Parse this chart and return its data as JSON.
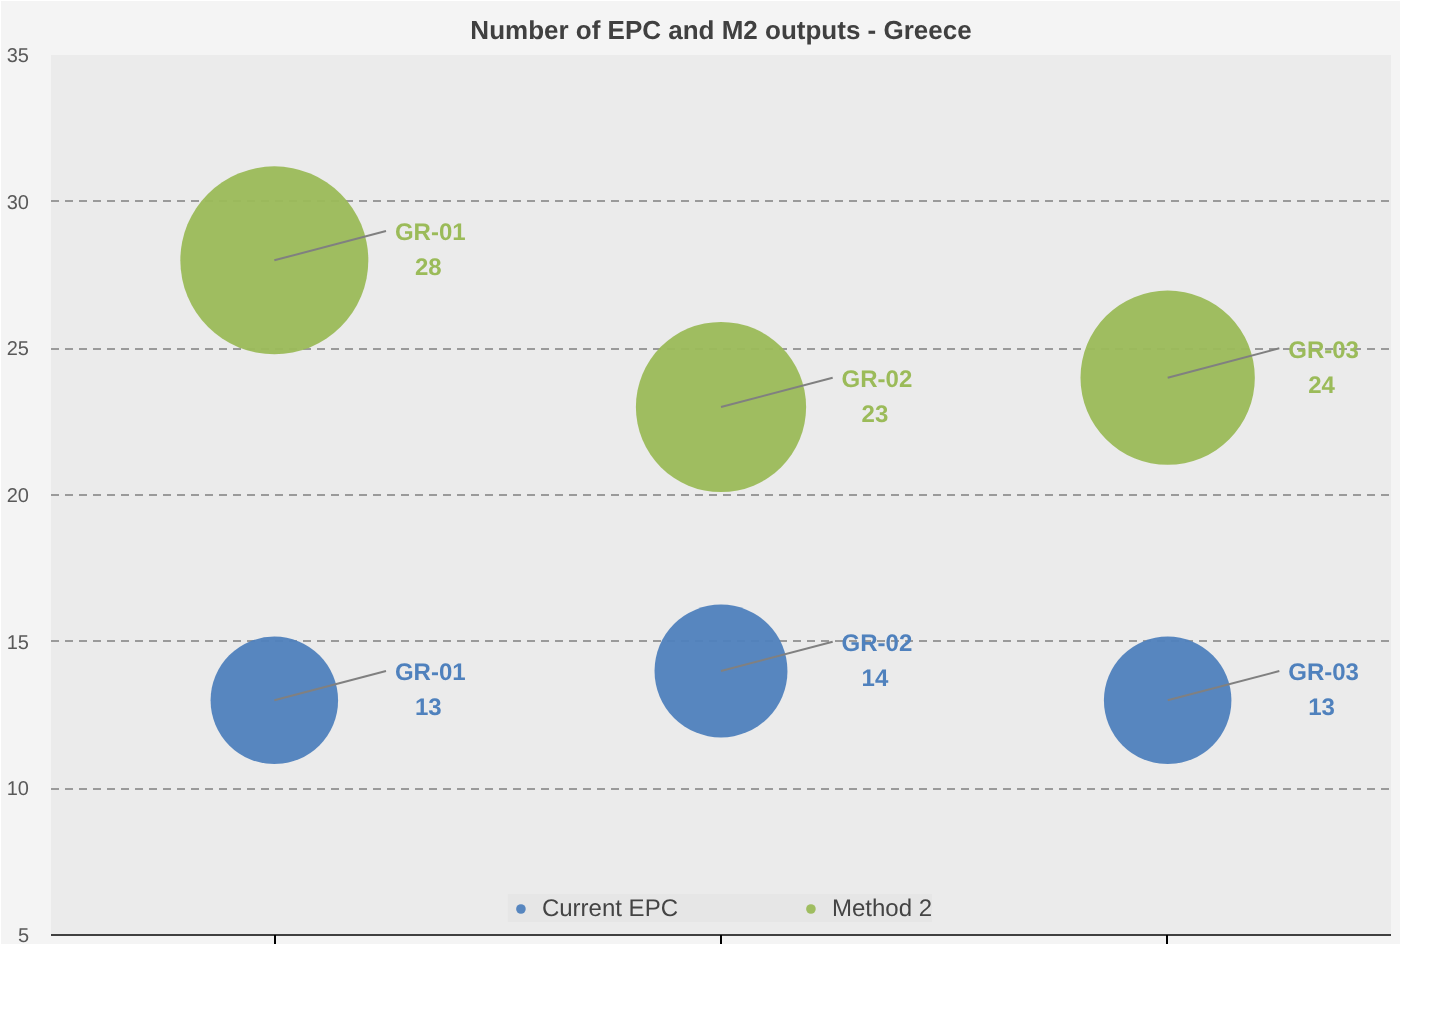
{
  "chart_data": {
    "type": "bubble",
    "title": "Number of EPC and M2 outputs - Greece",
    "categories": [
      null,
      null,
      null
    ],
    "series": [
      {
        "name": "Current EPC",
        "color": "#4f81bd",
        "values": [
          13,
          14,
          13
        ],
        "sizes": [
          0.46,
          0.5,
          0.46
        ],
        "value_labels": [
          "GR-01\n13",
          "GR-02\n14",
          "GR-03\n13"
        ]
      },
      {
        "name": "Method 2",
        "color": "#9bbb59",
        "values": [
          28,
          23,
          24
        ],
        "sizes": [
          1,
          0.82,
          0.86
        ],
        "value_labels": [
          "GR-01\n28",
          "GR-02\n23",
          "GR-03\n24"
        ]
      }
    ],
    "ylim": [
      5,
      35
    ],
    "yticks": [
      5,
      10,
      15,
      20,
      25,
      30,
      35
    ],
    "grid": "y",
    "legend": "bottom"
  }
}
